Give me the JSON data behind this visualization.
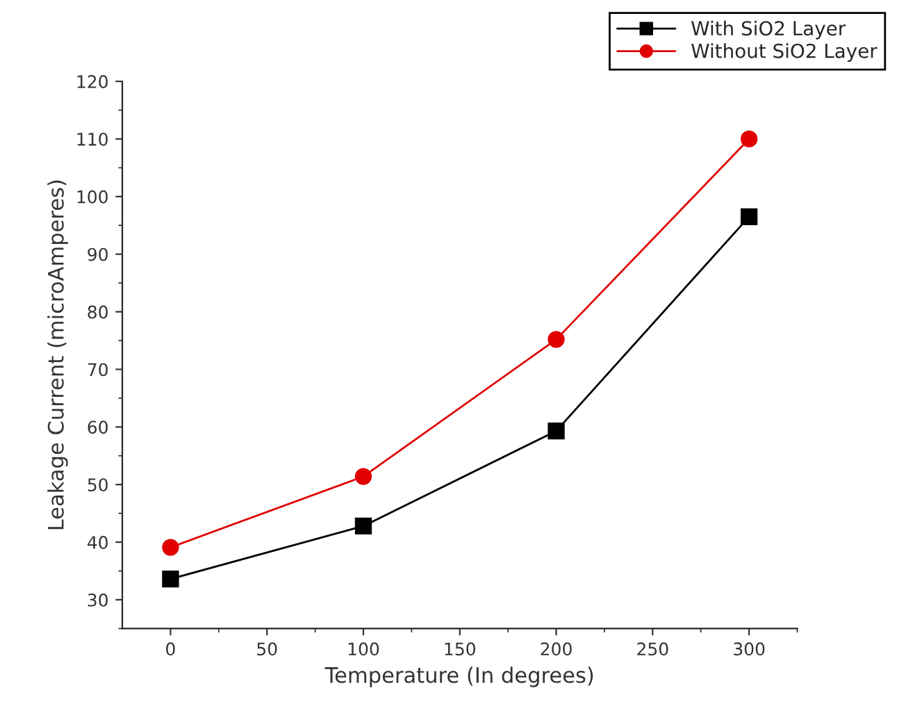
{
  "chart_data": {
    "type": "line",
    "xlabel": "Temperature (In degrees)",
    "ylabel": "Leakage Current (microAmperes)",
    "x": [
      0,
      100,
      200,
      300
    ],
    "series": [
      {
        "name": "With SiO2 Layer",
        "color": "#000000",
        "marker": "square",
        "values": [
          33.6,
          42.8,
          59.3,
          96.5
        ]
      },
      {
        "name": "Without SiO2 Layer",
        "color": "#e00000",
        "marker": "circle",
        "values": [
          39.1,
          51.4,
          75.2,
          110
        ]
      }
    ],
    "xlim": [
      -25,
      325
    ],
    "xticks": [
      0,
      50,
      100,
      150,
      200,
      250,
      300
    ],
    "ylim": [
      25,
      120
    ],
    "yticks": [
      30,
      40,
      50,
      60,
      70,
      80,
      90,
      100,
      110,
      120
    ],
    "legend": "top right",
    "grid": false,
    "line_style": "solid"
  }
}
